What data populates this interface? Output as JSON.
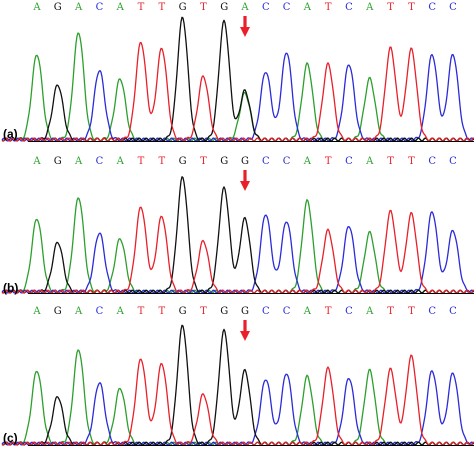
{
  "colors": {
    "A": "#2ca02c",
    "C": "#2b2bd9",
    "G": "#111111",
    "T": "#e8202a",
    "arrow": "#e8202a",
    "baseline": "#000000"
  },
  "chart_data": [
    {
      "type": "line",
      "panel_label": "(a)",
      "bases": [
        "A",
        "G",
        "A",
        "C",
        "A",
        "T",
        "T",
        "G",
        "T",
        "G",
        "A",
        "C",
        "C",
        "A",
        "T",
        "C",
        "A",
        "T",
        "T",
        "C",
        "C"
      ],
      "peak_heights": [
        0.7,
        0.45,
        0.88,
        0.57,
        0.5,
        0.8,
        0.75,
        1.0,
        0.52,
        0.97,
        0.38,
        0.56,
        0.72,
        0.62,
        0.62,
        0.62,
        0.5,
        0.75,
        0.74,
        0.7,
        0.7
      ],
      "secondary_peak": {
        "position": 10,
        "base": "G",
        "height": 0.4
      },
      "mutation_arrow_position": 10
    },
    {
      "type": "line",
      "panel_label": "(b)",
      "bases": [
        "A",
        "G",
        "A",
        "C",
        "A",
        "T",
        "T",
        "G",
        "T",
        "G",
        "G",
        "C",
        "C",
        "A",
        "T",
        "C",
        "A",
        "T",
        "T",
        "C",
        "C"
      ],
      "peak_heights": [
        0.62,
        0.42,
        0.8,
        0.5,
        0.45,
        0.72,
        0.64,
        0.97,
        0.43,
        0.88,
        0.62,
        0.66,
        0.6,
        0.77,
        0.52,
        0.56,
        0.5,
        0.68,
        0.66,
        0.68,
        0.52
      ],
      "secondary_peak": null,
      "mutation_arrow_position": 10
    },
    {
      "type": "line",
      "panel_label": "(c)",
      "bases": [
        "A",
        "G",
        "A",
        "C",
        "A",
        "T",
        "T",
        "G",
        "T",
        "G",
        "G",
        "C",
        "C",
        "A",
        "T",
        "C",
        "A",
        "T",
        "T",
        "C",
        "C"
      ],
      "peak_heights": [
        0.62,
        0.4,
        0.8,
        0.52,
        0.47,
        0.72,
        0.68,
        1.0,
        0.42,
        0.96,
        0.62,
        0.55,
        0.6,
        0.57,
        0.64,
        0.56,
        0.62,
        0.63,
        0.74,
        0.62,
        0.6
      ],
      "secondary_peak": null,
      "mutation_arrow_position": 10
    }
  ]
}
